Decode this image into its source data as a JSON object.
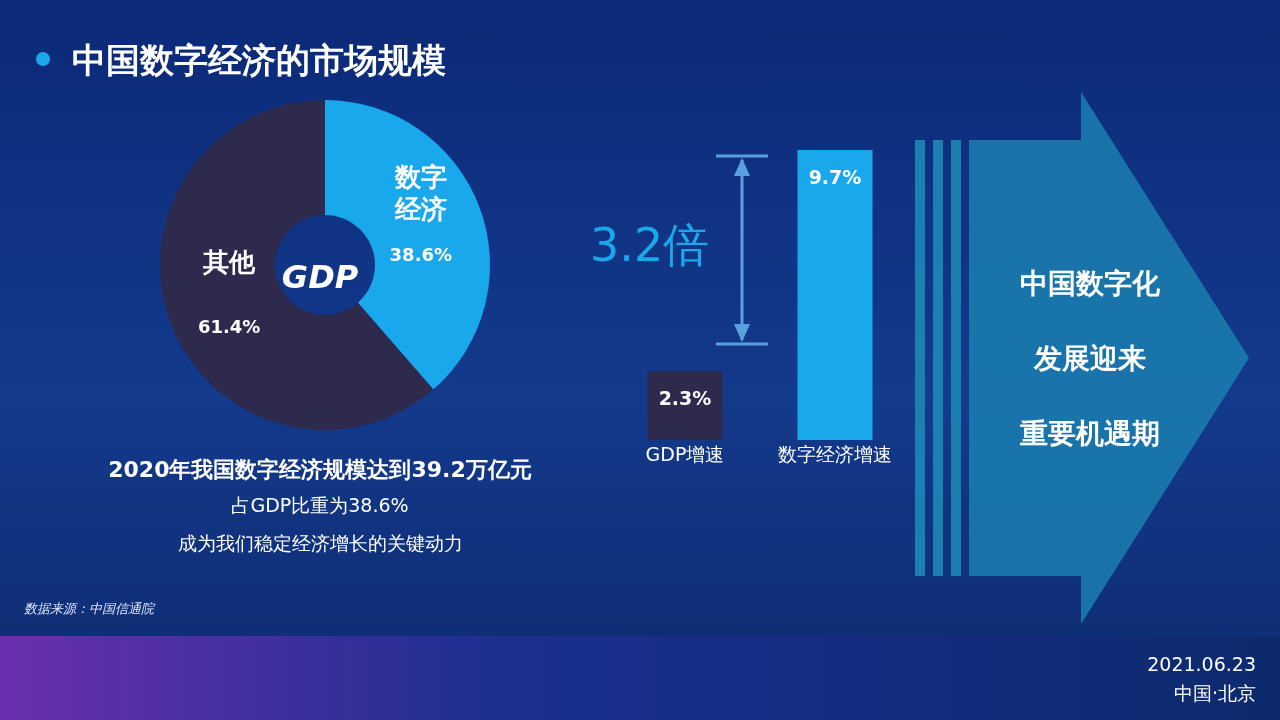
{
  "chart_data": [
    {
      "type": "donut",
      "title": "中国数字经济的市场规模",
      "categories": [
        "数字经济",
        "其他"
      ],
      "values": [
        38.6,
        61.4
      ],
      "colors": [
        "#1aa8ec",
        "#2d2a4e"
      ],
      "value_labels": [
        "38.6%",
        "61.4%"
      ],
      "annotations": [
        "GDP",
        "2020年我国数字经济规模达到39.2万亿元",
        "占GDP比重为38.6%",
        "成为我们稳定经济增长的关键动力",
        "数据来源：中国信通院"
      ]
    },
    {
      "type": "bar",
      "categories": [
        "GDP增速",
        "数字经济增速"
      ],
      "values": [
        2.3,
        9.7
      ],
      "colors": [
        "#2d2a4e",
        "#1aa8ec"
      ],
      "value_labels": [
        "2.3%",
        "9.7%"
      ],
      "annotations": [
        "3.2倍"
      ]
    },
    {
      "type": "other",
      "annotations": [
        "中国数字化",
        "发展迎来",
        "重要机遇期",
        "2021.06.23",
        "中国·北京"
      ]
    }
  ]
}
